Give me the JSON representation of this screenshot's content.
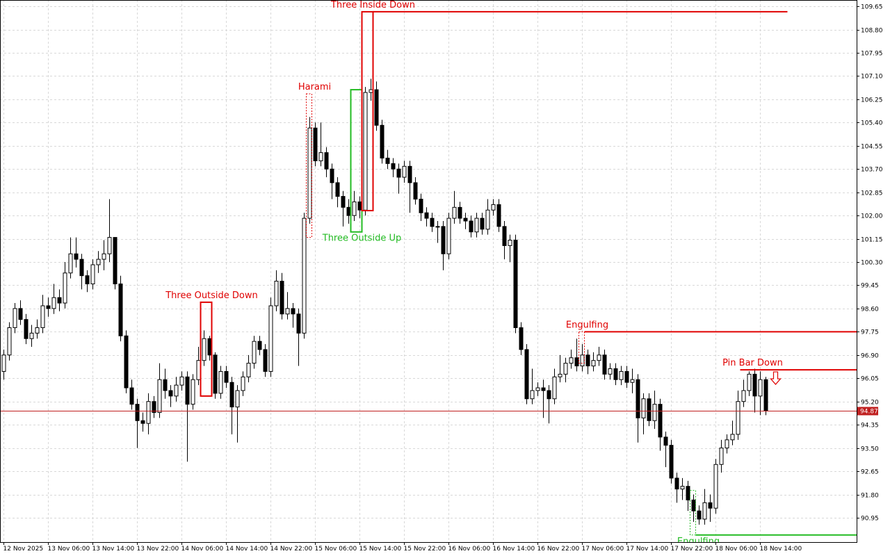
{
  "chart_data": {
    "type": "candlestick",
    "categories": [
      "12 Nov 2025",
      null,
      null,
      null,
      null,
      null,
      null,
      null,
      "13 Nov 06:00",
      null,
      null,
      null,
      null,
      null,
      null,
      null,
      "13 Nov 14:00",
      null,
      null,
      null,
      null,
      null,
      null,
      null,
      "13 Nov 22:00",
      null,
      null,
      null,
      null,
      null,
      null,
      null,
      "14 Nov 06:00",
      null,
      null,
      null,
      null,
      null,
      null,
      null,
      "14 Nov 14:00",
      null,
      null,
      null,
      null,
      null,
      null,
      null,
      "14 Nov 22:00",
      null,
      null,
      null,
      null,
      null,
      null,
      null,
      "15 Nov 06:00",
      null,
      null,
      null,
      null,
      null,
      null,
      null,
      "15 Nov 14:00",
      null,
      null,
      null,
      null,
      null,
      null,
      null,
      "15 Nov 22:00",
      null,
      null,
      null,
      null,
      null,
      null,
      null,
      "16 Nov 06:00",
      null,
      null,
      null,
      null,
      null,
      null,
      null,
      "16 Nov 14:00",
      null,
      null,
      null,
      null,
      null,
      null,
      null,
      "16 Nov 22:00",
      null,
      null,
      null,
      null,
      null,
      null,
      null,
      "17 Nov 06:00",
      null,
      null,
      null,
      null,
      null,
      null,
      null,
      "17 Nov 14:00",
      null,
      null,
      null,
      null,
      null,
      null,
      null,
      "17 Nov 22:00",
      null,
      null,
      null,
      null,
      null,
      null,
      null,
      "18 Nov 06:00",
      null,
      null,
      null,
      null,
      null,
      null,
      null,
      "18 Nov 14:00",
      null
    ],
    "open": [
      96.3,
      96.9,
      97.9,
      98.6,
      98.2,
      97.5,
      97.7,
      97.9,
      98.7,
      98.6,
      99.0,
      98.8,
      99.9,
      100.6,
      100.4,
      99.8,
      99.5,
      100.2,
      100.4,
      100.6,
      101.2,
      99.5,
      97.6,
      95.7,
      95.1,
      94.5,
      94.4,
      95.2,
      94.8,
      96.0,
      95.6,
      95.4,
      95.8,
      96.1,
      95.1,
      96.0,
      96.7,
      97.5,
      96.9,
      95.5,
      96.3,
      95.9,
      95.0,
      95.6,
      96.1,
      96.6,
      97.4,
      97.1,
      96.3,
      98.7,
      99.6,
      98.4,
      98.6,
      98.4,
      97.7,
      101.9,
      105.2,
      104.0,
      104.3,
      103.7,
      103.2,
      102.7,
      102.3,
      102.0,
      102.5,
      102.2,
      106.5,
      106.6,
      105.3,
      104.1,
      103.9,
      103.7,
      103.4,
      103.8,
      103.2,
      102.6,
      102.1,
      101.9,
      101.6,
      101.6,
      100.6,
      101.9,
      102.3,
      101.9,
      101.8,
      101.4,
      101.9,
      101.5,
      102.2,
      102.4,
      101.6,
      100.9,
      101.1,
      97.9,
      97.1,
      95.3,
      95.6,
      95.7,
      95.6,
      95.3,
      96.1,
      96.2,
      96.6,
      96.8,
      96.5,
      96.9,
      96.5,
      96.7,
      96.9,
      96.2,
      96.4,
      96.0,
      96.3,
      95.9,
      96.0,
      94.6,
      95.3,
      94.5,
      95.1,
      93.9,
      93.6,
      92.4,
      92.0,
      92.1,
      91.6,
      91.2,
      90.9,
      91.5,
      91.3,
      92.9,
      93.5,
      93.8,
      94.0,
      95.2,
      95.6,
      96.2,
      95.4,
      96.0
    ],
    "high": [
      97.1,
      98.1,
      98.8,
      98.9,
      98.4,
      98.0,
      98.2,
      99.1,
      99.0,
      99.5,
      99.3,
      100.3,
      101.2,
      101.2,
      100.6,
      100.0,
      100.4,
      100.7,
      101.1,
      102.6,
      101.2,
      99.8,
      97.8,
      96.0,
      95.3,
      94.8,
      95.5,
      95.4,
      96.6,
      96.4,
      95.8,
      96.1,
      96.3,
      96.3,
      96.2,
      97.2,
      97.8,
      97.6,
      97.0,
      96.5,
      96.5,
      96.1,
      95.8,
      96.3,
      96.9,
      97.6,
      97.6,
      97.3,
      99.0,
      100.0,
      99.9,
      99.2,
      98.8,
      98.6,
      102.1,
      105.6,
      105.4,
      105.4,
      104.5,
      103.9,
      103.4,
      102.9,
      102.6,
      102.9,
      102.7,
      106.7,
      107.0,
      106.9,
      105.5,
      104.4,
      104.1,
      103.9,
      104.0,
      104.0,
      103.4,
      102.8,
      102.3,
      102.1,
      101.8,
      101.8,
      102.1,
      102.9,
      102.5,
      102.1,
      102.0,
      102.1,
      102.1,
      102.6,
      102.6,
      102.6,
      101.8,
      101.3,
      101.3,
      98.1,
      97.3,
      96.4,
      95.9,
      96.0,
      95.8,
      96.4,
      96.9,
      96.8,
      97.1,
      97.5,
      97.3,
      97.1,
      97.0,
      97.2,
      97.1,
      96.6,
      96.6,
      96.5,
      96.5,
      96.4,
      96.2,
      95.5,
      95.5,
      95.6,
      95.3,
      94.1,
      93.8,
      92.6,
      92.4,
      92.3,
      91.8,
      91.4,
      92.0,
      91.8,
      93.1,
      93.8,
      94.0,
      94.5,
      95.6,
      96.0,
      96.3,
      96.4,
      96.3,
      96.1
    ],
    "low": [
      96.0,
      96.7,
      97.7,
      98.0,
      97.3,
      97.2,
      97.5,
      97.7,
      98.3,
      98.4,
      98.5,
      98.6,
      99.7,
      100.1,
      99.3,
      99.2,
      99.3,
      99.9,
      100.0,
      100.3,
      99.3,
      97.4,
      95.5,
      94.9,
      93.5,
      94.1,
      94.0,
      94.6,
      94.6,
      95.3,
      95.0,
      95.2,
      95.6,
      93.0,
      94.9,
      95.8,
      96.5,
      96.7,
      95.3,
      95.3,
      95.7,
      94.0,
      93.7,
      95.4,
      95.9,
      96.4,
      96.9,
      96.1,
      96.1,
      98.5,
      98.2,
      98.2,
      97.9,
      96.5,
      97.5,
      101.7,
      103.8,
      103.8,
      103.4,
      102.6,
      102.3,
      101.6,
      101.7,
      101.8,
      101.9,
      102.0,
      106.2,
      105.1,
      103.9,
      103.7,
      103.4,
      102.8,
      103.2,
      102.1,
      102.4,
      101.8,
      101.6,
      101.4,
      101.0,
      100.0,
      100.4,
      101.7,
      101.7,
      101.5,
      101.2,
      101.2,
      101.3,
      101.3,
      102.0,
      101.4,
      100.4,
      100.3,
      97.7,
      96.9,
      95.1,
      95.1,
      95.4,
      94.6,
      94.4,
      95.1,
      95.9,
      95.9,
      96.4,
      96.3,
      96.3,
      96.2,
      96.3,
      96.5,
      96.0,
      96.0,
      95.8,
      95.8,
      95.7,
      95.5,
      93.7,
      94.0,
      94.3,
      94.2,
      93.4,
      92.8,
      92.2,
      91.5,
      91.6,
      91.2,
      90.8,
      90.7,
      90.7,
      90.8,
      91.1,
      92.6,
      93.3,
      93.6,
      93.8,
      95.0,
      95.4,
      94.8,
      94.7,
      94.7
    ],
    "close": [
      96.9,
      97.9,
      98.6,
      98.2,
      97.5,
      97.7,
      97.9,
      98.7,
      98.6,
      99.0,
      98.8,
      99.9,
      100.6,
      100.4,
      99.8,
      99.5,
      100.2,
      100.4,
      100.6,
      101.2,
      99.5,
      97.6,
      95.7,
      95.1,
      94.5,
      94.4,
      95.2,
      94.8,
      96.0,
      95.6,
      95.4,
      95.8,
      96.1,
      95.1,
      96.0,
      96.7,
      97.5,
      96.9,
      95.5,
      96.3,
      95.9,
      95.0,
      95.6,
      96.1,
      96.6,
      97.4,
      97.1,
      96.3,
      98.7,
      99.6,
      98.4,
      98.6,
      98.4,
      97.7,
      101.9,
      105.2,
      104.0,
      104.3,
      103.7,
      103.2,
      102.7,
      102.3,
      102.0,
      102.5,
      102.2,
      106.5,
      106.6,
      105.3,
      104.1,
      103.9,
      103.7,
      103.4,
      103.8,
      103.2,
      102.6,
      102.1,
      101.9,
      101.6,
      101.6,
      100.6,
      101.9,
      102.3,
      101.9,
      101.8,
      101.4,
      101.9,
      101.5,
      102.2,
      102.4,
      101.6,
      100.9,
      101.1,
      97.9,
      97.1,
      95.3,
      95.6,
      95.7,
      95.6,
      95.3,
      96.1,
      96.2,
      96.6,
      96.8,
      96.5,
      96.9,
      96.5,
      96.7,
      96.9,
      96.2,
      96.4,
      96.0,
      96.3,
      95.9,
      96.0,
      94.6,
      95.3,
      94.5,
      95.1,
      93.9,
      93.6,
      92.4,
      92.0,
      92.1,
      91.6,
      91.2,
      90.9,
      91.5,
      91.3,
      92.9,
      93.5,
      93.8,
      94.0,
      95.2,
      95.6,
      96.2,
      95.4,
      96.0,
      94.87
    ],
    "ylim": [
      90.06,
      109.88
    ],
    "yticks": [
      109.65,
      {
        "value": 108.8,
        "label": "108.80"
      },
      107.95,
      {
        "value": 107.1,
        "label": "107.10"
      },
      106.25,
      {
        "value": 105.4,
        "label": "105.40"
      },
      104.55,
      {
        "value": 103.7,
        "label": "103.70"
      },
      102.85,
      {
        "value": 102,
        "label": "102.00"
      },
      101.15,
      {
        "value": 100.3,
        "label": "100.30"
      },
      99.45,
      {
        "value": 98.6,
        "label": "98.60"
      },
      97.75,
      {
        "value": 96.9,
        "label": "96.90"
      },
      96.05,
      {
        "value": 95.2,
        "label": "95.20"
      },
      94.35,
      {
        "value": 93.5,
        "label": "93.50"
      },
      92.65,
      {
        "value": 91.8,
        "label": "91.80"
      },
      90.95
    ],
    "grid": true,
    "current_price": 94.87,
    "patterns": [
      {
        "label": "Three Outside Down",
        "color": "#e00000",
        "from": 36,
        "to": 37,
        "top": 98.83,
        "bottom": 95.4,
        "label_position": "above"
      },
      {
        "label": "Harami",
        "color": "#e00000",
        "from": 55,
        "to": 55,
        "top": 106.45,
        "bottom": 101.2,
        "style": "dashed",
        "label_position": "above"
      },
      {
        "label": "Three Outside Up",
        "color": "#22bb22",
        "from": 63,
        "to": 64,
        "top": 106.6,
        "bottom": 101.4,
        "label_position": "below"
      },
      {
        "label": "Three Inside Down",
        "color": "#e00000",
        "from": 65,
        "to": 66,
        "top": 109.45,
        "bottom": 102.18,
        "level": 109.45,
        "level_end": 141,
        "label_position": "above"
      },
      {
        "label": "Engulfing",
        "color": "#e00000",
        "from": 104,
        "to": 104,
        "top": 97.75,
        "bottom": 96.6,
        "style": "dashed",
        "level": 97.75,
        "label_position": "above"
      },
      {
        "label": "Engulfing",
        "color": "#22bb22",
        "from": 124,
        "to": 124,
        "top": 91.95,
        "bottom": 90.32,
        "style": "dashed",
        "level": 90.32,
        "label_position": "below"
      },
      {
        "label": "Pin Bar Down",
        "color": "#e00000",
        "from": 133,
        "to": 133,
        "level": 96.36,
        "arrow": "down",
        "label_position": "above"
      }
    ]
  }
}
